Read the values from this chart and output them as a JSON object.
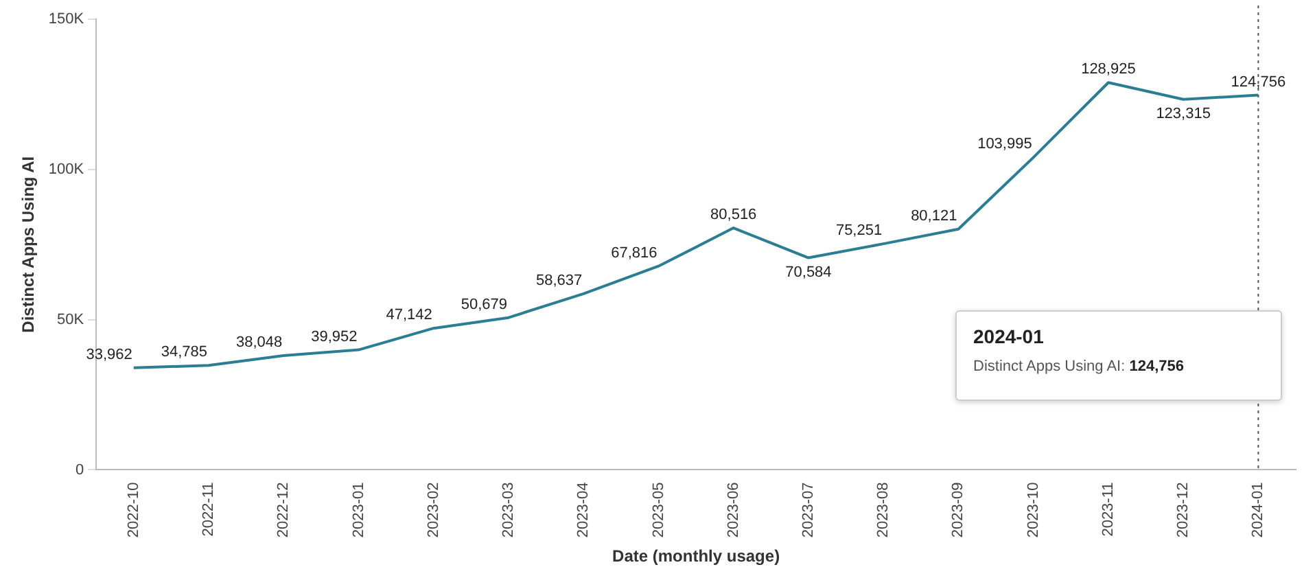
{
  "chart_data": {
    "type": "line",
    "xlabel": "Date (monthly usage)",
    "ylabel": "Distinct Apps Using AI",
    "categories": [
      "2022-10",
      "2022-11",
      "2022-12",
      "2023-01",
      "2023-02",
      "2023-03",
      "2023-04",
      "2023-05",
      "2023-06",
      "2023-07",
      "2023-08",
      "2023-09",
      "2023-10",
      "2023-11",
      "2023-12",
      "2024-01"
    ],
    "series": [
      {
        "color": "#2b7d94",
        "values": [
          33962,
          34785,
          38048,
          39952,
          47142,
          50679,
          58637,
          67816,
          80516,
          70584,
          75251,
          80121,
          103995,
          128925,
          123315,
          124756
        ],
        "value_labels": [
          "33,962",
          "34,785",
          "38,048",
          "39,952",
          "47,142",
          "50,679",
          "58,637",
          "67,816",
          "80,516",
          "70,584",
          "75,251",
          "80,121",
          "103,995",
          "128,925",
          "123,315",
          "124,756"
        ]
      }
    ],
    "ylim": [
      0,
      150000
    ],
    "yticks": [
      {
        "value": 0,
        "label": "0"
      },
      {
        "value": 50000,
        "label": "50K"
      },
      {
        "value": 100000,
        "label": "100K"
      },
      {
        "value": 150000,
        "label": "150K"
      }
    ],
    "grid": false,
    "legend": false,
    "marker": "none",
    "line_style": "solid",
    "ref_lines": [
      {
        "axis": "x",
        "value": "2024-01",
        "line_style": "dotted",
        "color": "#555555"
      }
    ],
    "annotations": [
      "2024-01",
      "Distinct Apps Using AI: 124,756"
    ]
  }
}
